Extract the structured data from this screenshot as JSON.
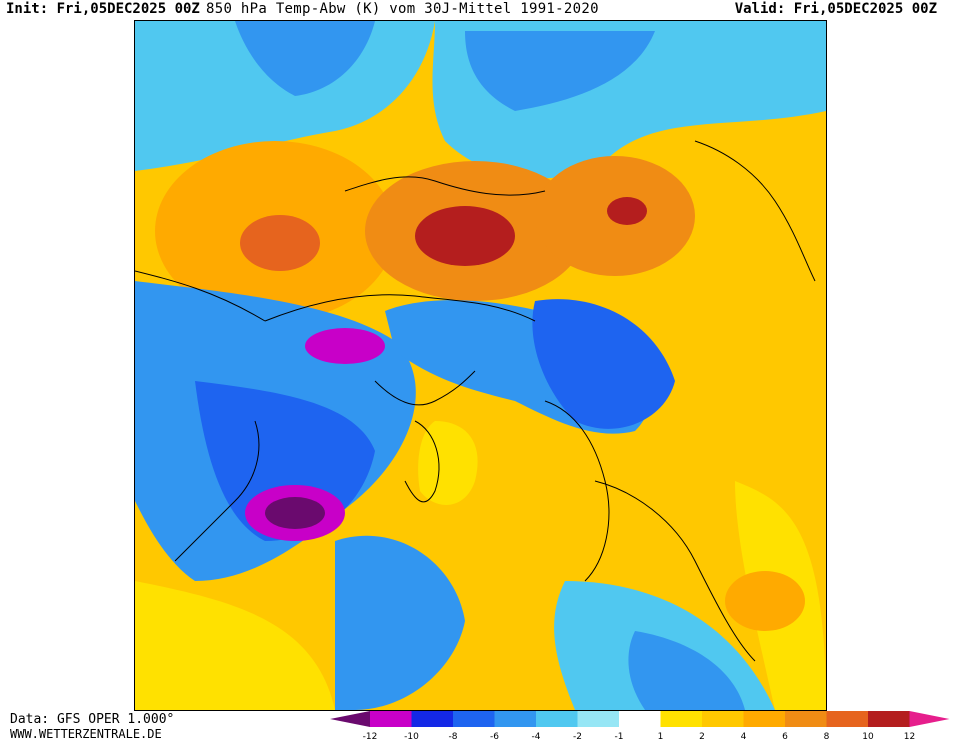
{
  "header": {
    "init": "Init: Fri,05DEC2025 00Z",
    "title": "850 hPa Temp-Abw (K) vom 30J-Mittel 1991-2020",
    "valid": "Valid: Fri,05DEC2025 00Z"
  },
  "footer": {
    "data_source": "Data: GFS OPER 1.000°",
    "website": "WWW.WETTERZENTRALE.DE"
  },
  "legend": {
    "ticks": [
      "-12",
      "-10",
      "-8",
      "-6",
      "-4",
      "-2",
      "-1",
      "1",
      "2",
      "4",
      "6",
      "8",
      "10",
      "12"
    ],
    "colors": [
      "#6a0a6e",
      "#c800c8",
      "#1428e6",
      "#1e64f0",
      "#3296f0",
      "#50c8f0",
      "#96e6f5",
      "#ffffff",
      "#ffe100",
      "#ffc800",
      "#ffaa00",
      "#f08c14",
      "#e6641e",
      "#b41e1e",
      "#e61e8c"
    ]
  },
  "map": {
    "colors": {
      "c12": "#6a0a6e",
      "c10": "#c800c8",
      "c8": "#1428e6",
      "c6": "#1e64f0",
      "c4": "#3296f0",
      "c2": "#50c8f0",
      "c1": "#96e6f5",
      "w1": "#ffe100",
      "w2": "#ffc800",
      "w4": "#ffaa00",
      "w6": "#f08c14",
      "w8": "#e6641e",
      "w10": "#b41e1e"
    }
  }
}
